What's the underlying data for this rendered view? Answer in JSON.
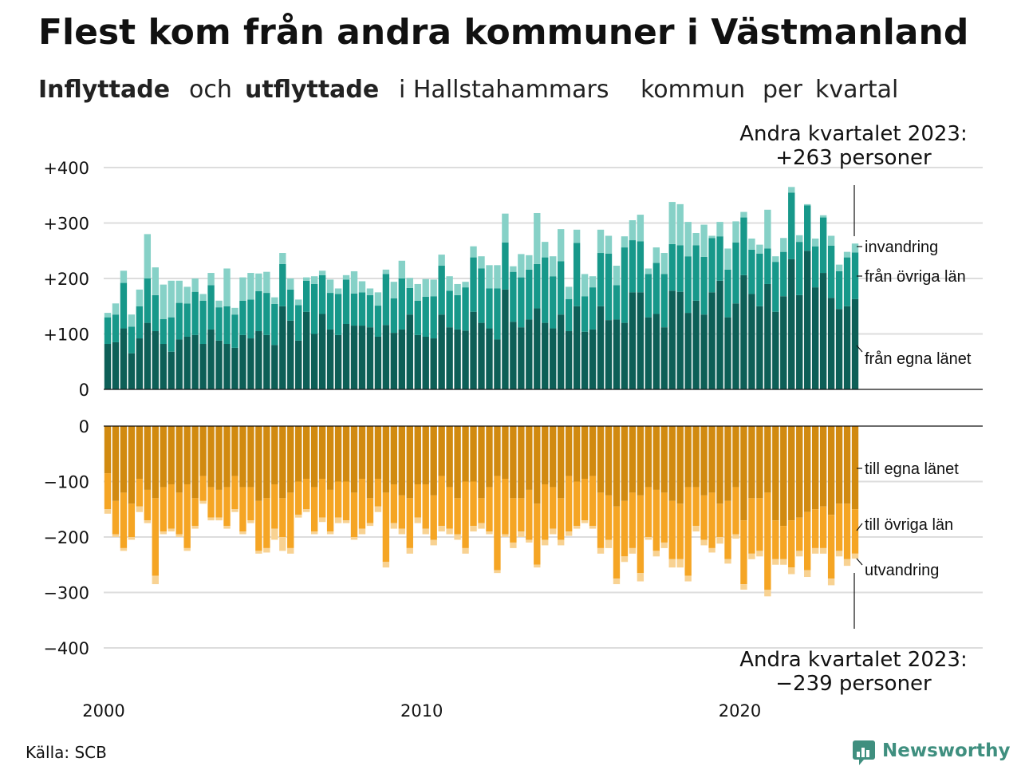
{
  "title": "Flest kom från andra kommuner i Västmanland",
  "subtitle": {
    "part1": "Inflyttade",
    "part2": "och",
    "part3": "utflyttade",
    "part4": "i Hallstahammars",
    "part5": "kommun",
    "part6": "per",
    "part7": "kvartal"
  },
  "annotations": {
    "top_line1": "Andra kvartalet 2023:",
    "top_line2": "+263 personer",
    "bottom_line1": "Andra kvartalet 2023:",
    "bottom_line2": "−239 personer"
  },
  "series_labels": {
    "in_immigration": "invandring",
    "in_other_counties": "från övriga län",
    "in_own_county": "från egna länet",
    "out_own_county": "till egna länet",
    "out_other_counties": "till övriga län",
    "out_emigration": "utvandring"
  },
  "source": "Källa: SCB",
  "brand": "Newsworthy",
  "colors": {
    "in_own": "#0d5f57",
    "in_other": "#17988a",
    "in_immig": "#86d1c7",
    "out_own": "#d18a10",
    "out_other": "#f5a524",
    "out_emig": "#f8d292",
    "accent_in": "#189c8c",
    "accent_out": "#f2a01e",
    "grid": "#dddddd",
    "brand": "#3f8f7f"
  },
  "chart_data": [
    {
      "type": "bar",
      "stacked": true,
      "panel": "inflyttade",
      "start_quarter": "2000Q1",
      "end_quarter": "2023Q2",
      "ylim": [
        0,
        400
      ],
      "yticks": [
        0,
        100,
        200,
        300,
        400
      ],
      "ytick_labels": [
        "0",
        "+100",
        "+200",
        "+300",
        "+400"
      ],
      "xticks": [
        "2000",
        "2010",
        "2020"
      ],
      "series": [
        {
          "name": "från egna länet",
          "values": [
            82,
            85,
            110,
            65,
            92,
            120,
            105,
            82,
            68,
            90,
            95,
            98,
            82,
            108,
            88,
            82,
            75,
            98,
            92,
            105,
            98,
            80,
            150,
            124,
            88,
            140,
            100,
            136,
            108,
            98,
            118,
            115,
            115,
            112,
            95,
            116,
            102,
            108,
            135,
            98,
            95,
            92,
            135,
            112,
            108,
            106,
            140,
            120,
            110,
            90,
            180,
            122,
            112,
            126,
            146,
            120,
            110,
            135,
            105,
            150,
            104,
            108,
            150,
            125,
            126,
            120,
            175,
            175,
            130,
            136,
            112,
            178,
            176,
            138,
            160,
            135,
            175,
            196,
            130,
            155,
            206,
            172,
            150,
            190,
            140,
            168,
            235,
            170,
            250,
            184,
            210,
            165,
            145,
            150,
            163
          ]
        },
        {
          "name": "från övriga län",
          "values": [
            48,
            50,
            82,
            48,
            58,
            80,
            65,
            45,
            62,
            66,
            60,
            78,
            78,
            80,
            60,
            68,
            60,
            62,
            70,
            72,
            76,
            74,
            76,
            56,
            64,
            56,
            90,
            70,
            66,
            74,
            80,
            58,
            60,
            58,
            56,
            92,
            62,
            92,
            48,
            62,
            72,
            76,
            88,
            66,
            62,
            78,
            98,
            98,
            72,
            92,
            85,
            90,
            90,
            90,
            80,
            118,
            94,
            96,
            58,
            114,
            64,
            76,
            96,
            120,
            62,
            136,
            94,
            92,
            78,
            92,
            96,
            84,
            84,
            102,
            100,
            104,
            98,
            80,
            86,
            110,
            104,
            80,
            95,
            64,
            90,
            80,
            120,
            96,
            82,
            74,
            100,
            94,
            68,
            88,
            84
          ]
        },
        {
          "name": "invandring",
          "values": [
            8,
            20,
            22,
            22,
            30,
            80,
            50,
            62,
            66,
            40,
            30,
            24,
            12,
            22,
            12,
            68,
            12,
            42,
            48,
            32,
            38,
            12,
            20,
            20,
            10,
            6,
            14,
            8,
            24,
            10,
            8,
            40,
            20,
            12,
            24,
            8,
            30,
            32,
            18,
            30,
            32,
            30,
            20,
            26,
            20,
            10,
            20,
            22,
            42,
            42,
            52,
            10,
            42,
            26,
            92,
            28,
            36,
            58,
            22,
            24,
            40,
            20,
            42,
            32,
            35,
            20,
            36,
            48,
            10,
            28,
            38,
            76,
            74,
            62,
            22,
            58,
            4,
            26,
            38,
            38,
            10,
            20,
            16,
            70,
            10,
            25,
            10,
            12,
            2,
            14,
            4,
            18,
            12,
            10,
            16
          ]
        }
      ]
    },
    {
      "type": "bar",
      "stacked": true,
      "panel": "utflyttade",
      "start_quarter": "2000Q1",
      "end_quarter": "2023Q2",
      "ylim": [
        -400,
        0
      ],
      "yticks": [
        0,
        -100,
        -200,
        -300,
        -400
      ],
      "ytick_labels": [
        "0",
        "−100",
        "−200",
        "−300",
        "−400"
      ],
      "xticks": [
        "2000",
        "2010",
        "2020"
      ],
      "series": [
        {
          "name": "till egna länet",
          "values": [
            -85,
            -135,
            -120,
            -140,
            -95,
            -115,
            -130,
            -110,
            -105,
            -120,
            -105,
            -130,
            -90,
            -110,
            -115,
            -110,
            -90,
            -110,
            -110,
            -135,
            -130,
            -105,
            -130,
            -120,
            -100,
            -95,
            -110,
            -95,
            -115,
            -100,
            -100,
            -120,
            -95,
            -130,
            -95,
            -120,
            -105,
            -125,
            -130,
            -105,
            -105,
            -125,
            -90,
            -110,
            -130,
            -100,
            -100,
            -130,
            -110,
            -90,
            -95,
            -130,
            -130,
            -115,
            -140,
            -105,
            -110,
            -130,
            -90,
            -100,
            -95,
            -90,
            -120,
            -125,
            -145,
            -135,
            -120,
            -125,
            -110,
            -115,
            -120,
            -135,
            -140,
            -110,
            -110,
            -125,
            -120,
            -140,
            -135,
            -110,
            -170,
            -130,
            -130,
            -120,
            -170,
            -180,
            -170,
            -165,
            -155,
            -150,
            -145,
            -160,
            -140,
            -140,
            -150
          ]
        },
        {
          "name": "till övriga län",
          "values": [
            -65,
            -60,
            -100,
            -60,
            -50,
            -55,
            -140,
            -80,
            -80,
            -75,
            -115,
            -50,
            -45,
            -55,
            -50,
            -70,
            -60,
            -80,
            -60,
            -90,
            -90,
            -80,
            -70,
            -100,
            -60,
            -55,
            -80,
            -70,
            -75,
            -65,
            -70,
            -80,
            -90,
            -45,
            -50,
            -125,
            -70,
            -60,
            -90,
            -60,
            -80,
            -80,
            -90,
            -75,
            -65,
            -120,
            -80,
            -45,
            -80,
            -170,
            -100,
            -80,
            -60,
            -90,
            -110,
            -100,
            -75,
            -75,
            -100,
            -80,
            -75,
            -90,
            -100,
            -80,
            -130,
            -100,
            -100,
            -140,
            -90,
            -110,
            -90,
            -105,
            -100,
            -160,
            -70,
            -80,
            -100,
            -60,
            -105,
            -85,
            -115,
            -100,
            -95,
            -175,
            -70,
            -60,
            -85,
            -60,
            -105,
            -70,
            -75,
            -115,
            -85,
            -100,
            -80
          ]
        },
        {
          "name": "utvandring",
          "values": [
            -8,
            -5,
            -5,
            -5,
            -10,
            -5,
            -15,
            -5,
            -5,
            -5,
            -5,
            -5,
            -5,
            -5,
            -5,
            -5,
            -5,
            -5,
            -5,
            -5,
            -8,
            -20,
            -25,
            -10,
            -5,
            -5,
            -5,
            -8,
            -5,
            -10,
            -5,
            -5,
            -10,
            -5,
            -10,
            -10,
            -10,
            -10,
            -10,
            -10,
            -10,
            -10,
            -10,
            -10,
            -10,
            -10,
            -10,
            -10,
            -5,
            -5,
            -5,
            -10,
            -10,
            -5,
            -5,
            -10,
            -10,
            -10,
            -8,
            -5,
            -5,
            -5,
            -10,
            -15,
            -10,
            -10,
            -10,
            -15,
            -5,
            -10,
            -10,
            -15,
            -15,
            -10,
            -10,
            -10,
            -8,
            -12,
            -8,
            -8,
            -10,
            -10,
            -10,
            -12,
            -10,
            -10,
            -12,
            -10,
            -12,
            -10,
            -10,
            -12,
            -10,
            -12,
            -9
          ]
        }
      ]
    }
  ]
}
